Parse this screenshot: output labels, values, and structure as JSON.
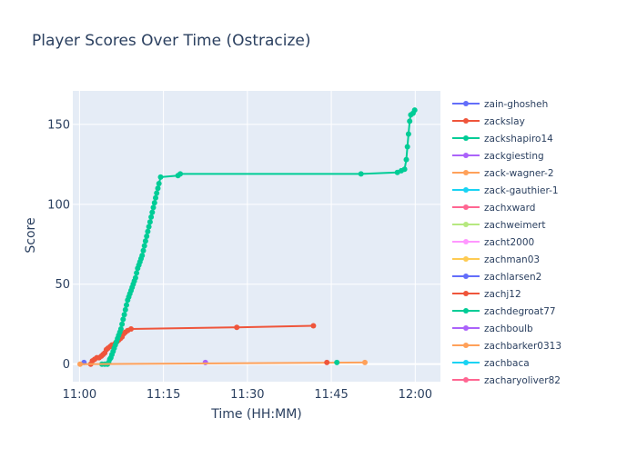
{
  "chart_data": {
    "type": "line",
    "title": "Player Scores Over Time (Ostracize)",
    "xlabel": "Time (HH:MM)",
    "ylabel": "Score",
    "x_range_minutes": [
      -1.2,
      64.5
    ],
    "ylim": [
      -11,
      171
    ],
    "x_ticks": [
      {
        "minute": 0,
        "label": "11:00"
      },
      {
        "minute": 15,
        "label": "11:15"
      },
      {
        "minute": 30,
        "label": "11:30"
      },
      {
        "minute": 45,
        "label": "11:45"
      },
      {
        "minute": 60,
        "label": "12:00"
      }
    ],
    "y_ticks": [
      0,
      50,
      100,
      150
    ],
    "legend_position": "right",
    "grid": true,
    "plot_background": "#e5ecf6",
    "series": [
      {
        "name": "zain-ghosheh",
        "color": "#636efa",
        "points": [
          [
            0.8,
            1
          ]
        ]
      },
      {
        "name": "zackslay",
        "color": "#ef553b",
        "points": [
          [
            2.0,
            0
          ],
          [
            2.3,
            2
          ],
          [
            2.7,
            3
          ],
          [
            3.1,
            4
          ],
          [
            3.5,
            4
          ],
          [
            3.9,
            5
          ],
          [
            4.2,
            6
          ],
          [
            4.5,
            7
          ],
          [
            4.8,
            9
          ],
          [
            5.1,
            10
          ],
          [
            5.5,
            11
          ],
          [
            5.8,
            12
          ],
          [
            6.1,
            12
          ],
          [
            6.4,
            13
          ],
          [
            6.7,
            14
          ],
          [
            7.0,
            15
          ],
          [
            7.3,
            16
          ],
          [
            7.6,
            17
          ],
          [
            7.9,
            19
          ],
          [
            8.2,
            20
          ],
          [
            8.6,
            21
          ],
          [
            9.2,
            22
          ],
          [
            28.1,
            23
          ],
          [
            41.8,
            24
          ]
        ]
      },
      {
        "name": "zackshapiro14",
        "color": "#00cc96",
        "points": [
          [
            4.0,
            0
          ],
          [
            4.5,
            0
          ],
          [
            5.0,
            0
          ],
          [
            5.2,
            1
          ],
          [
            5.4,
            3
          ],
          [
            5.6,
            4
          ],
          [
            5.8,
            6
          ],
          [
            6.0,
            8
          ],
          [
            6.2,
            10
          ],
          [
            6.4,
            12
          ],
          [
            6.6,
            14
          ],
          [
            6.8,
            16
          ],
          [
            7.0,
            18
          ],
          [
            7.2,
            20
          ],
          [
            7.4,
            22
          ],
          [
            7.6,
            25
          ],
          [
            7.8,
            28
          ],
          [
            8.0,
            31
          ],
          [
            8.2,
            34
          ],
          [
            8.4,
            37
          ],
          [
            8.6,
            40
          ],
          [
            8.8,
            42
          ],
          [
            9.0,
            44
          ],
          [
            9.2,
            46
          ],
          [
            9.4,
            48
          ],
          [
            9.6,
            50
          ],
          [
            9.8,
            52
          ],
          [
            10.0,
            54
          ],
          [
            10.2,
            57
          ],
          [
            10.4,
            60
          ],
          [
            10.6,
            62
          ],
          [
            10.8,
            64
          ],
          [
            11.0,
            66
          ],
          [
            11.2,
            68
          ],
          [
            11.4,
            71
          ],
          [
            11.6,
            74
          ],
          [
            11.8,
            77
          ],
          [
            12.0,
            80
          ],
          [
            12.2,
            83
          ],
          [
            12.4,
            86
          ],
          [
            12.6,
            89
          ],
          [
            12.8,
            92
          ],
          [
            13.0,
            95
          ],
          [
            13.2,
            98
          ],
          [
            13.4,
            101
          ],
          [
            13.6,
            104
          ],
          [
            13.8,
            107
          ],
          [
            14.0,
            110
          ],
          [
            14.2,
            113
          ],
          [
            14.5,
            117
          ],
          [
            17.6,
            118
          ],
          [
            18.0,
            119
          ],
          [
            50.3,
            119
          ],
          [
            56.8,
            120
          ],
          [
            57.5,
            121
          ],
          [
            58.1,
            122
          ],
          [
            58.4,
            128
          ],
          [
            58.6,
            136
          ],
          [
            58.8,
            144
          ],
          [
            59.0,
            152
          ],
          [
            59.2,
            156
          ],
          [
            59.6,
            157
          ],
          [
            59.9,
            159
          ]
        ]
      },
      {
        "name": "zackgiesting",
        "color": "#ab63fa",
        "points": [
          [
            22.5,
            1
          ]
        ]
      },
      {
        "name": "zack-wagner-2",
        "color": "#ffa15a",
        "points": [
          [
            0.1,
            0
          ],
          [
            51.0,
            1
          ]
        ]
      },
      {
        "name": "zack-gauthier-1",
        "color": "#19d3f3",
        "points": []
      },
      {
        "name": "zachxward",
        "color": "#ff6692",
        "points": []
      },
      {
        "name": "zachweimert",
        "color": "#b6e880",
        "points": []
      },
      {
        "name": "zacht2000",
        "color": "#ff97ff",
        "points": []
      },
      {
        "name": "zachman03",
        "color": "#fecb52",
        "points": []
      },
      {
        "name": "zachlarsen2",
        "color": "#636efa",
        "points": []
      },
      {
        "name": "zachj12",
        "color": "#ef553b",
        "points": [
          [
            44.2,
            1
          ]
        ]
      },
      {
        "name": "zachdegroat77",
        "color": "#00cc96",
        "points": [
          [
            46.0,
            1
          ]
        ]
      },
      {
        "name": "zachboulb",
        "color": "#ab63fa",
        "points": []
      },
      {
        "name": "zachbarker0313",
        "color": "#ffa15a",
        "points": []
      },
      {
        "name": "zachbaca",
        "color": "#19d3f3",
        "points": []
      },
      {
        "name": "zacharyoliver82",
        "color": "#ff6692",
        "points": []
      }
    ]
  }
}
